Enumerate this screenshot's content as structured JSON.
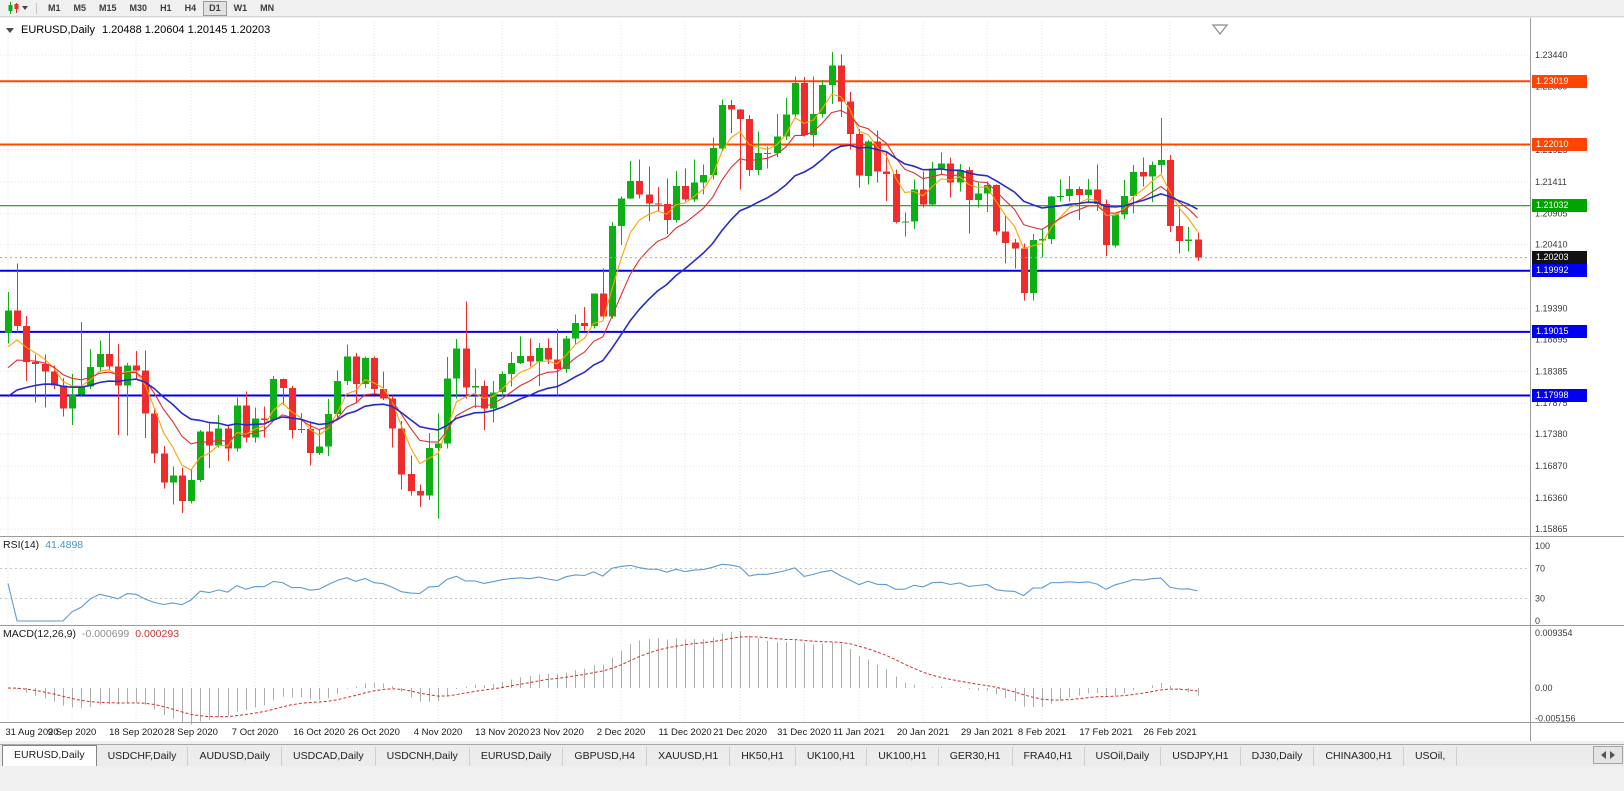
{
  "toolbar": {
    "timeframes": [
      "M1",
      "M5",
      "M15",
      "M30",
      "H1",
      "H4",
      "D1",
      "W1",
      "MN"
    ],
    "active_timeframe": "D1"
  },
  "chart_header": {
    "symbol": "EURUSD,Daily",
    "ohlc": "1.20488 1.20604 1.20145 1.20203"
  },
  "rsi_panel": {
    "title": "RSI(14)",
    "value": "41.4898",
    "axis_labels": [
      "100",
      "70",
      "30",
      "0"
    ],
    "axis_values": [
      100,
      70,
      30,
      0
    ],
    "levels": [
      70,
      30
    ],
    "line_color": "#5B9BD5"
  },
  "macd_panel": {
    "title": "MACD(12,26,9)",
    "value_main": "-0.000699",
    "value_signal": "0.000293",
    "axis_labels": [
      "0.009354",
      "0.00",
      "-0.005156"
    ],
    "axis_values": [
      0.009354,
      0,
      -0.005156
    ],
    "histogram_color": "#ADADAD",
    "signal_color": "#D23030"
  },
  "price_axis": {
    "ticks": [
      1.2344,
      1.22939,
      1.21925,
      1.21411,
      1.20905,
      1.2041,
      1.1939,
      1.18895,
      1.18385,
      1.17875,
      1.1738,
      1.1687,
      1.1636,
      1.15865
    ],
    "tick_labels": [
      "1.23440",
      "1.22939",
      "1.21925",
      "1.21411",
      "1.20905",
      "1.20410",
      "1.19390",
      "1.18895",
      "1.18385",
      "1.17875",
      "1.17380",
      "1.16870",
      "1.16360",
      "1.15865"
    ]
  },
  "date_axis": {
    "labels": [
      "31 Aug 2020",
      "9 Sep 2020",
      "18 Sep 2020",
      "28 Sep 2020",
      "7 Oct 2020",
      "16 Oct 2020",
      "26 Oct 2020",
      "4 Nov 2020",
      "13 Nov 2020",
      "23 Nov 2020",
      "2 Dec 2020",
      "11 Dec 2020",
      "21 Dec 2020",
      "31 Dec 2020",
      "11 Jan 2021",
      "20 Jan 2021",
      "29 Jan 2021",
      "8 Feb 2021",
      "17 Feb 2021",
      "26 Feb 2021"
    ],
    "candle_indices": [
      0,
      7,
      14,
      20,
      27,
      34,
      40,
      47,
      54,
      60,
      67,
      74,
      80,
      87,
      93,
      100,
      107,
      113,
      120,
      127
    ]
  },
  "chart_data": {
    "type": "candlestick",
    "symbol": "EURUSD",
    "timeframe": "Daily",
    "bull_color": "#0CB014",
    "bear_color": "#F02B2B",
    "y_axis": {
      "visible_min": 1.1578,
      "visible_max": 1.2397
    },
    "candles": [
      [
        1.19,
        1.1965,
        1.1883,
        1.1936
      ],
      [
        1.1936,
        1.2011,
        1.1901,
        1.1911
      ],
      [
        1.1911,
        1.1927,
        1.1823,
        1.1853
      ],
      [
        1.1853,
        1.1865,
        1.1789,
        1.185
      ],
      [
        1.185,
        1.1865,
        1.1781,
        1.1838
      ],
      [
        1.1838,
        1.1848,
        1.181,
        1.1816
      ],
      [
        1.1816,
        1.1828,
        1.1766,
        1.1779
      ],
      [
        1.1779,
        1.1834,
        1.1753,
        1.1801
      ],
      [
        1.1801,
        1.1917,
        1.1799,
        1.1814
      ],
      [
        1.1814,
        1.1874,
        1.181,
        1.1845
      ],
      [
        1.1845,
        1.1888,
        1.1839,
        1.1866
      ],
      [
        1.1866,
        1.19,
        1.1841,
        1.1846
      ],
      [
        1.1846,
        1.1882,
        1.1737,
        1.1816
      ],
      [
        1.1816,
        1.1852,
        1.1736,
        1.1848
      ],
      [
        1.1848,
        1.1871,
        1.1826,
        1.184
      ],
      [
        1.184,
        1.1872,
        1.1732,
        1.1771
      ],
      [
        1.1771,
        1.1778,
        1.1692,
        1.1707
      ],
      [
        1.1707,
        1.1719,
        1.1651,
        1.1661
      ],
      [
        1.1661,
        1.1686,
        1.1626,
        1.1672
      ],
      [
        1.1672,
        1.1685,
        1.1612,
        1.1631
      ],
      [
        1.1631,
        1.1683,
        1.1627,
        1.1665
      ],
      [
        1.1665,
        1.1745,
        1.1662,
        1.1742
      ],
      [
        1.1742,
        1.1755,
        1.1684,
        1.172
      ],
      [
        1.172,
        1.1769,
        1.1717,
        1.1747
      ],
      [
        1.1747,
        1.1751,
        1.1695,
        1.1715
      ],
      [
        1.1715,
        1.1797,
        1.171,
        1.1784
      ],
      [
        1.1784,
        1.1806,
        1.1725,
        1.1733
      ],
      [
        1.1733,
        1.1781,
        1.1725,
        1.1763
      ],
      [
        1.1763,
        1.1782,
        1.1733,
        1.1761
      ],
      [
        1.1761,
        1.1831,
        1.1758,
        1.1826
      ],
      [
        1.1826,
        1.1827,
        1.1785,
        1.1812
      ],
      [
        1.1812,
        1.1815,
        1.1731,
        1.1745
      ],
      [
        1.1745,
        1.1772,
        1.174,
        1.1746
      ],
      [
        1.1746,
        1.1758,
        1.1688,
        1.1708
      ],
      [
        1.1708,
        1.1746,
        1.1705,
        1.1718
      ],
      [
        1.1718,
        1.1794,
        1.1703,
        1.177
      ],
      [
        1.177,
        1.184,
        1.176,
        1.1823
      ],
      [
        1.1823,
        1.1881,
        1.1817,
        1.1862
      ],
      [
        1.1862,
        1.1868,
        1.1787,
        1.1818
      ],
      [
        1.1818,
        1.1862,
        1.1812,
        1.186
      ],
      [
        1.186,
        1.1862,
        1.1803,
        1.181
      ],
      [
        1.181,
        1.1838,
        1.1793,
        1.1795
      ],
      [
        1.1795,
        1.18,
        1.1717,
        1.1747
      ],
      [
        1.1747,
        1.1759,
        1.165,
        1.1674
      ],
      [
        1.1674,
        1.1704,
        1.164,
        1.1647
      ],
      [
        1.1647,
        1.1658,
        1.1622,
        1.164
      ],
      [
        1.164,
        1.174,
        1.1633,
        1.1716
      ],
      [
        1.1716,
        1.1771,
        1.1603,
        1.1723
      ],
      [
        1.1723,
        1.1861,
        1.1715,
        1.1827
      ],
      [
        1.1827,
        1.189,
        1.1795,
        1.1875
      ],
      [
        1.1875,
        1.195,
        1.1795,
        1.1813
      ],
      [
        1.1813,
        1.1843,
        1.178,
        1.1815
      ],
      [
        1.1815,
        1.1824,
        1.1745,
        1.1779
      ],
      [
        1.1779,
        1.1823,
        1.1757,
        1.1805
      ],
      [
        1.1805,
        1.1838,
        1.1799,
        1.1834
      ],
      [
        1.1834,
        1.1869,
        1.1814,
        1.1852
      ],
      [
        1.1852,
        1.1894,
        1.185,
        1.1863
      ],
      [
        1.1863,
        1.1891,
        1.1846,
        1.1854
      ],
      [
        1.1854,
        1.1884,
        1.1815,
        1.1876
      ],
      [
        1.1876,
        1.1891,
        1.185,
        1.1857
      ],
      [
        1.1857,
        1.1906,
        1.18,
        1.1842
      ],
      [
        1.1842,
        1.1895,
        1.1836,
        1.1891
      ],
      [
        1.1891,
        1.1929,
        1.1881,
        1.1916
      ],
      [
        1.1916,
        1.1941,
        1.1904,
        1.1911
      ],
      [
        1.1911,
        1.1963,
        1.1907,
        1.1963
      ],
      [
        1.1963,
        1.2003,
        1.1923,
        1.1926
      ],
      [
        1.1926,
        1.2077,
        1.1923,
        1.2071
      ],
      [
        1.2071,
        1.2118,
        1.204,
        1.2115
      ],
      [
        1.2115,
        1.2175,
        1.2114,
        1.2143
      ],
      [
        1.2143,
        1.2177,
        1.2115,
        1.2121
      ],
      [
        1.2121,
        1.2166,
        1.2079,
        1.2107
      ],
      [
        1.2107,
        1.2133,
        1.2095,
        1.2106
      ],
      [
        1.2106,
        1.2147,
        1.2058,
        1.208
      ],
      [
        1.208,
        1.2159,
        1.2076,
        1.2135
      ],
      [
        1.2135,
        1.2163,
        1.211,
        1.2113
      ],
      [
        1.2113,
        1.2177,
        1.2109,
        1.214
      ],
      [
        1.214,
        1.2169,
        1.2121,
        1.2152
      ],
      [
        1.2152,
        1.2212,
        1.2145,
        1.2195
      ],
      [
        1.2195,
        1.2273,
        1.219,
        1.2264
      ],
      [
        1.2264,
        1.2272,
        1.2219,
        1.2257
      ],
      [
        1.2257,
        1.2258,
        1.2129,
        1.2242
      ],
      [
        1.2242,
        1.2248,
        1.2151,
        1.216
      ],
      [
        1.216,
        1.2222,
        1.2152,
        1.2187
      ],
      [
        1.2187,
        1.2198,
        1.2163,
        1.2187
      ],
      [
        1.2187,
        1.225,
        1.2181,
        1.2214
      ],
      [
        1.2214,
        1.2275,
        1.2208,
        1.2249
      ],
      [
        1.2249,
        1.231,
        1.2245,
        1.2299
      ],
      [
        1.2299,
        1.2309,
        1.2214,
        1.2216
      ],
      [
        1.2216,
        1.231,
        1.2197,
        1.225
      ],
      [
        1.225,
        1.2304,
        1.2244,
        1.2296
      ],
      [
        1.2296,
        1.2349,
        1.2266,
        1.2327
      ],
      [
        1.2327,
        1.2345,
        1.2245,
        1.227
      ],
      [
        1.227,
        1.2285,
        1.2193,
        1.2218
      ],
      [
        1.2218,
        1.2226,
        1.2132,
        1.2151
      ],
      [
        1.2151,
        1.2208,
        1.2137,
        1.2206
      ],
      [
        1.2206,
        1.2223,
        1.214,
        1.2158
      ],
      [
        1.2158,
        1.2189,
        1.2111,
        1.2154
      ],
      [
        1.2154,
        1.2161,
        1.2075,
        1.2077
      ],
      [
        1.2077,
        1.2092,
        1.2054,
        1.2078
      ],
      [
        1.2078,
        1.2145,
        1.2066,
        1.2129
      ],
      [
        1.2129,
        1.2158,
        1.21,
        1.2105
      ],
      [
        1.2105,
        1.2173,
        1.2103,
        1.2163
      ],
      [
        1.2163,
        1.2188,
        1.2152,
        1.2171
      ],
      [
        1.2171,
        1.218,
        1.2116,
        1.214
      ],
      [
        1.214,
        1.217,
        1.2126,
        1.216
      ],
      [
        1.216,
        1.2165,
        1.2059,
        1.2112
      ],
      [
        1.2112,
        1.2142,
        1.21,
        1.2123
      ],
      [
        1.2123,
        1.2142,
        1.2093,
        1.2136
      ],
      [
        1.2136,
        1.2137,
        1.2056,
        1.2062
      ],
      [
        1.2062,
        1.2087,
        1.2011,
        1.2044
      ],
      [
        1.2044,
        1.205,
        1.2003,
        1.2035
      ],
      [
        1.2035,
        1.2043,
        1.1952,
        1.1964
      ],
      [
        1.1964,
        1.2058,
        1.1952,
        1.2048
      ],
      [
        1.2048,
        1.2067,
        1.202,
        1.205
      ],
      [
        1.205,
        1.2119,
        1.2042,
        1.2118
      ],
      [
        1.2118,
        1.2145,
        1.211,
        1.2119
      ],
      [
        1.2119,
        1.2151,
        1.211,
        1.213
      ],
      [
        1.213,
        1.2134,
        1.208,
        1.212
      ],
      [
        1.212,
        1.2146,
        1.2108,
        1.2129
      ],
      [
        1.2129,
        1.2169,
        1.2095,
        1.2106
      ],
      [
        1.2106,
        1.2113,
        1.2023,
        1.204
      ],
      [
        1.204,
        1.209,
        1.2036,
        1.2089
      ],
      [
        1.2089,
        1.2144,
        1.2082,
        1.2119
      ],
      [
        1.2119,
        1.2168,
        1.2091,
        1.2157
      ],
      [
        1.2157,
        1.218,
        1.2134,
        1.215
      ],
      [
        1.215,
        1.2174,
        1.2109,
        1.2168
      ],
      [
        1.2168,
        1.2243,
        1.2155,
        1.2176
      ],
      [
        1.2176,
        1.2184,
        1.2061,
        1.2071
      ],
      [
        1.2071,
        1.2101,
        1.2027,
        1.2047
      ],
      [
        1.2047,
        1.2069,
        1.203,
        1.2049
      ],
      [
        1.20488,
        1.20604,
        1.20145,
        1.20203
      ]
    ],
    "moving_averages": [
      {
        "name": "fast",
        "method": "ema",
        "period": 5,
        "color": "#FFA200"
      },
      {
        "name": "medium",
        "method": "ema",
        "period": 10,
        "color": "#E03030"
      },
      {
        "name": "slow",
        "method": "ema",
        "period": 21,
        "color": "#2A2ACC"
      }
    ],
    "horizontal_lines": [
      {
        "price": 1.23019,
        "label": "1.23019",
        "color": "#FF4500",
        "width": 2
      },
      {
        "price": 1.2201,
        "label": "1.22010",
        "color": "#FF4500",
        "width": 2
      },
      {
        "price": 1.21032,
        "label": "1.21032",
        "color": "#00A400",
        "width": 1.2
      },
      {
        "price": 1.19992,
        "label": "1.19992",
        "color": "#0000EE",
        "width": 2
      },
      {
        "price": 1.19015,
        "label": "1.19015",
        "color": "#0000EE",
        "width": 2
      },
      {
        "price": 1.17998,
        "label": "1.17998",
        "color": "#0000EE",
        "width": 2
      }
    ],
    "current_price": {
      "value": 1.20203,
      "label": "1.20203",
      "badge_color": "#111111"
    },
    "indicators": {
      "rsi": {
        "period": 14,
        "current": 41.4898
      },
      "macd": {
        "fast": 12,
        "slow": 26,
        "signal": 9,
        "current_macd": -0.000699,
        "current_signal": 0.000293
      }
    }
  },
  "tabs": {
    "items": [
      "EURUSD,Daily",
      "USDCHF,Daily",
      "AUDUSD,Daily",
      "USDCAD,Daily",
      "USDCNH,Daily",
      "EURUSD,Daily",
      "GBPUSD,H4",
      "XAUUSD,H1",
      "HK50,H1",
      "UK100,H1",
      "UK100,H1",
      "GER30,H1",
      "FRA40,H1",
      "USOil,Daily",
      "USDJPY,H1",
      "DJ30,Daily",
      "CHINA300,H1",
      "USOil,"
    ],
    "active_index": 0
  }
}
